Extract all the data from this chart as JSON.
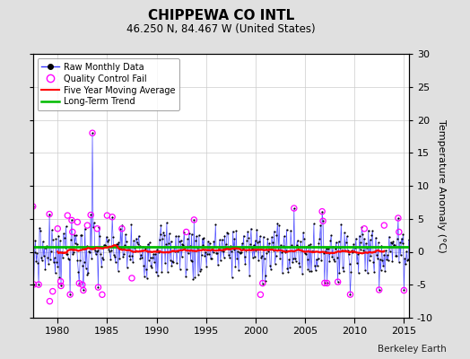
{
  "title": "CHIPPEWA CO INTL",
  "subtitle": "46.250 N, 84.467 W (United States)",
  "ylabel_right": "Temperature Anomaly (°C)",
  "attribution": "Berkeley Earth",
  "xlim": [
    1977.5,
    2015.5
  ],
  "ylim": [
    -10,
    30
  ],
  "yticks_right": [
    -10,
    -5,
    0,
    5,
    10,
    15,
    20,
    25,
    30
  ],
  "xticks": [
    1980,
    1985,
    1990,
    1995,
    2000,
    2005,
    2010,
    2015
  ],
  "bg_color": "#e0e0e0",
  "plot_bg_color": "#ffffff",
  "raw_line_color": "#3333ff",
  "raw_marker_color": "#000000",
  "qc_fail_color": "#ff00ff",
  "moving_avg_color": "#ff0000",
  "trend_color": "#00bb00",
  "seed": 7,
  "start_year": 1977.5,
  "end_year": 2015.5,
  "n_monthly": 456,
  "noise_std": 2.2,
  "qc_threshold": 4.5,
  "moving_avg_window": 61,
  "trend_value": 0.8
}
